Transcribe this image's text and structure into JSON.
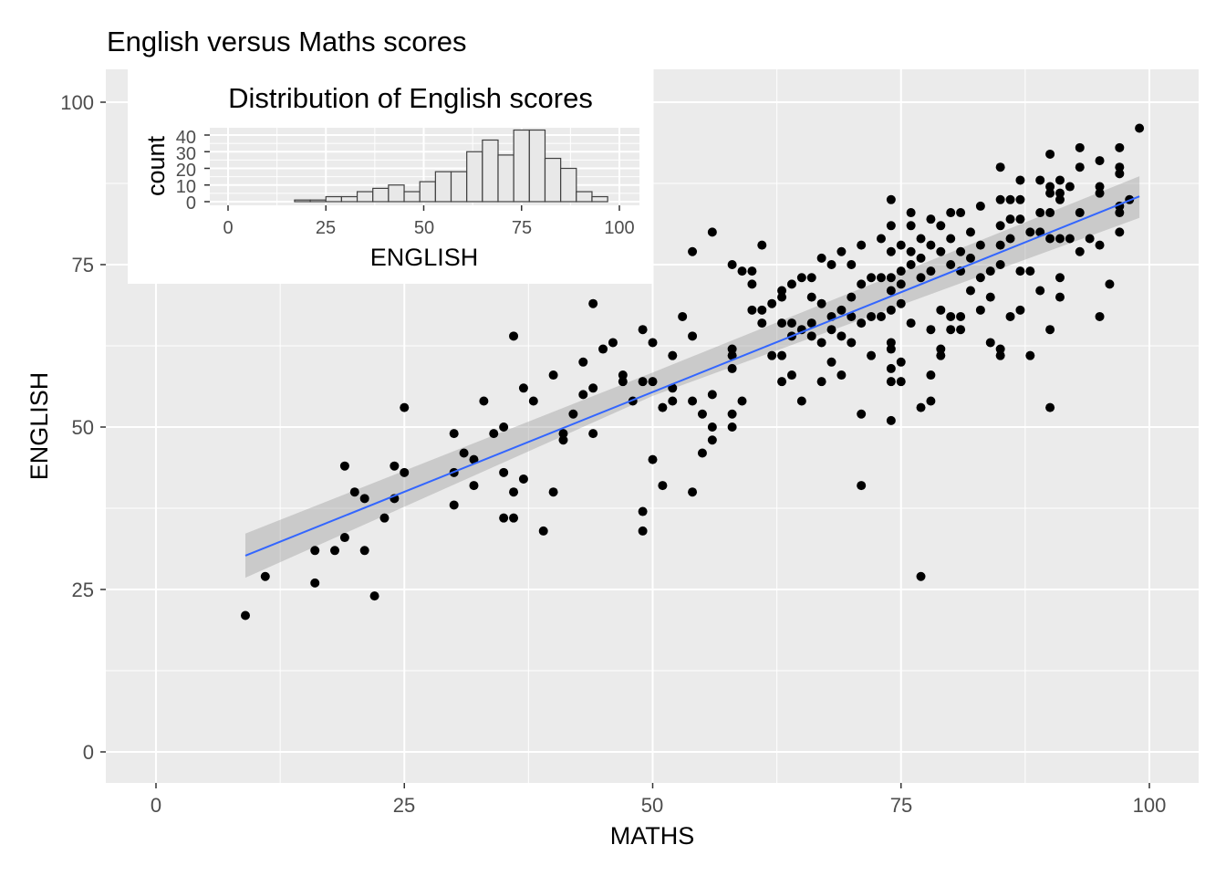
{
  "chart_data": [
    {
      "type": "scatter",
      "title": "English versus Maths scores",
      "xlabel": "MATHS",
      "ylabel": "ENGLISH",
      "xlim": [
        -5,
        105
      ],
      "ylim": [
        -5,
        105
      ],
      "xticks": [
        "0",
        "25",
        "50",
        "75",
        "100"
      ],
      "yticks": [
        "0",
        "25",
        "50",
        "75",
        "100"
      ],
      "grid": true,
      "point_color": "#000000",
      "fit": {
        "type": "linear",
        "color": "#3366FF",
        "x": [
          9,
          99
        ],
        "y": [
          30.2,
          85.5
        ],
        "se_band": [
          [
            9,
            26.8,
            33.6
          ],
          [
            50,
            54.8,
            58.4
          ],
          [
            99,
            82.2,
            88.6
          ]
        ]
      },
      "points": [
        [
          9,
          21
        ],
        [
          11,
          27
        ],
        [
          16,
          26
        ],
        [
          16,
          31
        ],
        [
          18,
          31
        ],
        [
          19,
          33
        ],
        [
          19,
          44
        ],
        [
          20,
          40
        ],
        [
          21,
          39
        ],
        [
          21,
          31
        ],
        [
          22,
          24
        ],
        [
          23,
          36
        ],
        [
          24,
          44
        ],
        [
          24,
          39
        ],
        [
          25,
          53
        ],
        [
          25,
          43
        ],
        [
          30,
          49
        ],
        [
          30,
          43
        ],
        [
          30,
          38
        ],
        [
          31,
          46
        ],
        [
          32,
          45
        ],
        [
          32,
          41
        ],
        [
          33,
          54
        ],
        [
          34,
          49
        ],
        [
          35,
          50
        ],
        [
          35,
          43
        ],
        [
          35,
          36
        ],
        [
          36,
          36
        ],
        [
          36,
          64
        ],
        [
          36,
          40
        ],
        [
          37,
          56
        ],
        [
          37,
          42
        ],
        [
          38,
          54
        ],
        [
          39,
          34
        ],
        [
          40,
          58
        ],
        [
          40,
          40
        ],
        [
          41,
          49
        ],
        [
          41,
          48
        ],
        [
          42,
          52
        ],
        [
          43,
          60
        ],
        [
          43,
          55
        ],
        [
          44,
          69
        ],
        [
          44,
          56
        ],
        [
          44,
          49
        ],
        [
          45,
          62
        ],
        [
          46,
          63
        ],
        [
          47,
          58
        ],
        [
          47,
          57
        ],
        [
          48,
          54
        ],
        [
          49,
          65
        ],
        [
          49,
          57
        ],
        [
          49,
          37
        ],
        [
          49,
          34
        ],
        [
          50,
          63
        ],
        [
          50,
          57
        ],
        [
          50,
          45
        ],
        [
          51,
          53
        ],
        [
          51,
          41
        ],
        [
          52,
          56
        ],
        [
          52,
          54
        ],
        [
          52,
          61
        ],
        [
          53,
          67
        ],
        [
          54,
          77
        ],
        [
          54,
          64
        ],
        [
          54,
          54
        ],
        [
          54,
          40
        ],
        [
          55,
          52
        ],
        [
          55,
          46
        ],
        [
          56,
          80
        ],
        [
          56,
          55
        ],
        [
          56,
          50
        ],
        [
          56,
          48
        ],
        [
          58,
          75
        ],
        [
          58,
          62
        ],
        [
          58,
          61
        ],
        [
          58,
          59
        ],
        [
          58,
          52
        ],
        [
          58,
          50
        ],
        [
          59,
          74
        ],
        [
          59,
          54
        ],
        [
          60,
          74
        ],
        [
          60,
          72
        ],
        [
          60,
          68
        ],
        [
          61,
          78
        ],
        [
          61,
          68
        ],
        [
          61,
          66
        ],
        [
          62,
          69
        ],
        [
          62,
          61
        ],
        [
          63,
          71
        ],
        [
          63,
          70
        ],
        [
          63,
          66
        ],
        [
          63,
          61
        ],
        [
          63,
          57
        ],
        [
          64,
          72
        ],
        [
          64,
          66
        ],
        [
          64,
          64
        ],
        [
          64,
          58
        ],
        [
          65,
          73
        ],
        [
          65,
          65
        ],
        [
          65,
          54
        ],
        [
          66,
          73
        ],
        [
          66,
          70
        ],
        [
          66,
          66
        ],
        [
          66,
          64
        ],
        [
          67,
          76
        ],
        [
          67,
          69
        ],
        [
          67,
          63
        ],
        [
          67,
          57
        ],
        [
          68,
          75
        ],
        [
          68,
          67
        ],
        [
          68,
          65
        ],
        [
          68,
          60
        ],
        [
          69,
          77
        ],
        [
          69,
          68
        ],
        [
          69,
          64
        ],
        [
          69,
          58
        ],
        [
          70,
          75
        ],
        [
          70,
          70
        ],
        [
          70,
          67
        ],
        [
          70,
          63
        ],
        [
          71,
          78
        ],
        [
          71,
          72
        ],
        [
          71,
          66
        ],
        [
          71,
          52
        ],
        [
          71,
          41
        ],
        [
          72,
          73
        ],
        [
          72,
          67
        ],
        [
          72,
          61
        ],
        [
          73,
          79
        ],
        [
          73,
          73
        ],
        [
          73,
          67
        ],
        [
          74,
          85
        ],
        [
          74,
          81
        ],
        [
          74,
          77
        ],
        [
          74,
          73
        ],
        [
          74,
          71
        ],
        [
          74,
          68
        ],
        [
          74,
          63
        ],
        [
          74,
          62
        ],
        [
          74,
          59
        ],
        [
          74,
          57
        ],
        [
          74,
          51
        ],
        [
          75,
          78
        ],
        [
          75,
          74
        ],
        [
          75,
          72
        ],
        [
          75,
          69
        ],
        [
          75,
          60
        ],
        [
          75,
          57
        ],
        [
          76,
          83
        ],
        [
          76,
          81
        ],
        [
          76,
          77
        ],
        [
          76,
          75
        ],
        [
          76,
          66
        ],
        [
          77,
          79
        ],
        [
          77,
          76
        ],
        [
          77,
          73
        ],
        [
          77,
          53
        ],
        [
          77,
          27
        ],
        [
          78,
          82
        ],
        [
          78,
          78
        ],
        [
          78,
          74
        ],
        [
          78,
          65
        ],
        [
          78,
          58
        ],
        [
          78,
          54
        ],
        [
          79,
          81
        ],
        [
          79,
          77
        ],
        [
          79,
          68
        ],
        [
          79,
          62
        ],
        [
          79,
          61
        ],
        [
          80,
          83
        ],
        [
          80,
          79
        ],
        [
          80,
          75
        ],
        [
          80,
          67
        ],
        [
          80,
          65
        ],
        [
          81,
          83
        ],
        [
          81,
          77
        ],
        [
          81,
          74
        ],
        [
          81,
          67
        ],
        [
          81,
          65
        ],
        [
          82,
          80
        ],
        [
          82,
          76
        ],
        [
          82,
          71
        ],
        [
          83,
          84
        ],
        [
          83,
          78
        ],
        [
          83,
          73
        ],
        [
          83,
          68
        ],
        [
          84,
          74
        ],
        [
          84,
          70
        ],
        [
          84,
          63
        ],
        [
          85,
          90
        ],
        [
          85,
          85
        ],
        [
          85,
          81
        ],
        [
          85,
          78
        ],
        [
          85,
          75
        ],
        [
          85,
          62
        ],
        [
          85,
          61
        ],
        [
          86,
          85
        ],
        [
          86,
          82
        ],
        [
          86,
          79
        ],
        [
          86,
          67
        ],
        [
          87,
          88
        ],
        [
          87,
          85
        ],
        [
          87,
          82
        ],
        [
          87,
          74
        ],
        [
          87,
          68
        ],
        [
          88,
          80
        ],
        [
          88,
          74
        ],
        [
          88,
          61
        ],
        [
          89,
          88
        ],
        [
          89,
          83
        ],
        [
          89,
          80
        ],
        [
          89,
          71
        ],
        [
          90,
          92
        ],
        [
          90,
          87
        ],
        [
          90,
          86
        ],
        [
          90,
          83
        ],
        [
          90,
          79
        ],
        [
          90,
          65
        ],
        [
          90,
          53
        ],
        [
          91,
          88
        ],
        [
          91,
          86
        ],
        [
          91,
          85
        ],
        [
          91,
          79
        ],
        [
          91,
          73
        ],
        [
          91,
          70
        ],
        [
          92,
          87
        ],
        [
          92,
          79
        ],
        [
          93,
          93
        ],
        [
          93,
          90
        ],
        [
          93,
          83
        ],
        [
          93,
          77
        ],
        [
          94,
          79
        ],
        [
          95,
          91
        ],
        [
          95,
          87
        ],
        [
          95,
          86
        ],
        [
          95,
          78
        ],
        [
          95,
          67
        ],
        [
          96,
          72
        ],
        [
          97,
          93
        ],
        [
          97,
          90
        ],
        [
          97,
          89
        ],
        [
          97,
          84
        ],
        [
          97,
          83
        ],
        [
          97,
          80
        ],
        [
          98,
          85
        ],
        [
          99,
          96
        ]
      ]
    },
    {
      "type": "bar",
      "title": "Distribution of English scores",
      "xlabel": "ENGLISH",
      "ylabel": "count",
      "xticks": [
        "0",
        "25",
        "50",
        "75",
        "100"
      ],
      "yticks": [
        "0",
        "10",
        "20",
        "30",
        "40"
      ],
      "xlim": [
        -4,
        106
      ],
      "ylim": [
        0,
        43
      ],
      "bin_width": 4,
      "bin_starts": [
        17,
        21,
        25,
        29,
        33,
        37,
        41,
        45,
        49,
        53,
        57,
        61,
        65,
        69,
        73,
        77,
        81,
        85,
        89,
        93
      ],
      "values": [
        1,
        1,
        3,
        3,
        6,
        8,
        10,
        6,
        12,
        18,
        18,
        30,
        37,
        28,
        43,
        43,
        26,
        20,
        6,
        3
      ],
      "fill": "#E8E8E8",
      "stroke": "#404040"
    }
  ]
}
